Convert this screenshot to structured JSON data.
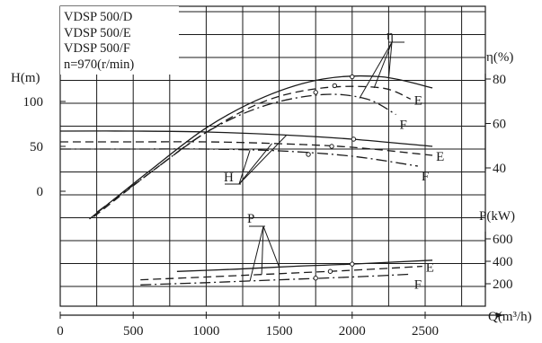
{
  "chart_data": {
    "type": "line",
    "info_box": [
      "VDSP 500/D",
      "VDSP 500/E",
      "VDSP 500/F",
      "n=970(r/min)"
    ],
    "x_axis": {
      "label": "Q(m³/h)",
      "ticks": [
        "0",
        "500",
        "1000",
        "1500",
        "2000",
        "2500"
      ],
      "range": [
        0,
        2700
      ]
    },
    "head_axis": {
      "label": "H(m)",
      "ticks": [
        "0",
        "50",
        "100"
      ],
      "range": [
        -20,
        120
      ]
    },
    "efficiency_axis": {
      "label": "η(%)",
      "ticks": [
        "40",
        "60",
        "80"
      ],
      "range": [
        32,
        88
      ]
    },
    "power_axis": {
      "label": "P(kW)",
      "ticks": [
        "200",
        "400",
        "600"
      ],
      "range": [
        100,
        700
      ]
    },
    "grid": true,
    "groups": [
      {
        "name": "H",
        "axis": "head",
        "series": [
          {
            "name": "",
            "style": "solid",
            "x": [
              0,
              500,
              1000,
              1500,
              2000,
              2550
            ],
            "y": [
              67,
              67,
              66,
              63,
              58,
              50
            ]
          },
          {
            "name": "E",
            "style": "dashed",
            "x": [
              0,
              500,
              1000,
              1500,
              2000,
              2550
            ],
            "y": [
              55,
              55,
              55,
              53,
              49,
              40
            ]
          },
          {
            "name": "F",
            "style": "dashdot",
            "x": [
              0,
              500,
              1000,
              1500,
              2000,
              2450
            ],
            "y": [
              47,
              47,
              47,
              45,
              39,
              28
            ]
          }
        ],
        "markers": [
          {
            "x": 2010,
            "y": 58
          },
          {
            "x": 1860,
            "y": 50
          },
          {
            "x": 1700,
            "y": 41
          }
        ]
      },
      {
        "name": "η",
        "axis": "efficiency",
        "series": [
          {
            "name": "",
            "style": "solid",
            "x": [
              200,
              600,
              1000,
              1400,
              1800,
              2200,
              2550
            ],
            "y": [
              17,
              38,
              58,
              72,
              80,
              81,
              76
            ]
          },
          {
            "name": "E",
            "style": "dashed",
            "x": [
              230,
              600,
              1000,
              1400,
              1800,
              2200,
              2400
            ],
            "y": [
              18,
              37,
              56,
              70,
              76,
              76,
              71
            ]
          },
          {
            "name": "F",
            "style": "dashdot",
            "x": [
              250,
              600,
              1000,
              1400,
              1800,
              2100,
              2300
            ],
            "y": [
              20,
              37,
              56,
              68,
              73,
              71,
              64
            ]
          }
        ],
        "markers": [
          {
            "x": 2000,
            "y": 81
          },
          {
            "x": 1880,
            "y": 77
          },
          {
            "x": 1750,
            "y": 74
          }
        ]
      },
      {
        "name": "P",
        "axis": "power",
        "series": [
          {
            "name": "",
            "style": "solid",
            "x": [
              800,
              1200,
              1600,
              2000,
              2550
            ],
            "y": [
              310,
              330,
              355,
              375,
              410
            ]
          },
          {
            "name": "E",
            "style": "dashed",
            "x": [
              550,
              1000,
              1500,
              2000,
              2480
            ],
            "y": [
              235,
              260,
              290,
              320,
              355
            ]
          },
          {
            "name": "F",
            "style": "dashdot",
            "x": [
              550,
              1000,
              1500,
              2000,
              2400
            ],
            "y": [
              190,
              210,
              235,
              260,
              285
            ]
          }
        ],
        "markers": [
          {
            "x": 2000,
            "y": 375
          },
          {
            "x": 1850,
            "y": 310
          },
          {
            "x": 1750,
            "y": 250
          }
        ]
      }
    ]
  }
}
